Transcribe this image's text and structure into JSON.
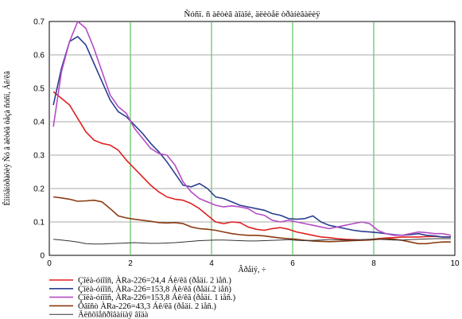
{
  "chart_data": {
    "type": "line",
    "title": "Ñóñï. ñ àêòèâ àîàîé, äëèòåë òðàíèâàëèÿ",
    "xlabel": "Âðåìÿ, ÷",
    "ylabel": "Êîíöåíòðàöèÿ Ñó â àêòèâ òåçà ñóñï, Áê/êã",
    "xlim": [
      0,
      10
    ],
    "ylim": [
      0,
      0.7
    ],
    "x_ticks": [
      0,
      2,
      4,
      6,
      8,
      10
    ],
    "y_ticks": [
      0,
      0.1,
      0.2,
      0.3,
      0.4,
      0.5,
      0.6,
      0.7
    ],
    "x_tick_labels": [
      "0",
      "2",
      "4",
      "6",
      "8",
      "10"
    ],
    "y_tick_labels": [
      "0",
      "0.1",
      "0.2",
      "0.3",
      "0.4",
      "0.5",
      "0.6",
      "0.7"
    ],
    "grid": true,
    "legend_position": "bottom",
    "series": [
      {
        "name": "Çîëà-óíîîñ, ÀRa-226=24,4 Áê/êã (ðåäí. 2 ìåñ.)",
        "color": "#e02020",
        "x": [
          0.1,
          0.3,
          0.5,
          0.7,
          0.9,
          1.1,
          1.3,
          1.5,
          1.7,
          1.9,
          2.1,
          2.3,
          2.5,
          2.7,
          2.9,
          3.1,
          3.3,
          3.5,
          3.7,
          3.9,
          4.1,
          4.3,
          4.5,
          4.7,
          4.9,
          5.1,
          5.3,
          5.5,
          5.7,
          5.9,
          6.1,
          6.3,
          6.5,
          6.7,
          6.9,
          7.1,
          7.3,
          7.5,
          7.7,
          7.9,
          8.1,
          8.3,
          8.5,
          8.7,
          8.9,
          9.1,
          9.3,
          9.5,
          9.7,
          9.9
        ],
        "y": [
          0.49,
          0.47,
          0.45,
          0.41,
          0.37,
          0.345,
          0.335,
          0.33,
          0.315,
          0.285,
          0.26,
          0.235,
          0.21,
          0.19,
          0.175,
          0.168,
          0.165,
          0.155,
          0.14,
          0.12,
          0.1,
          0.095,
          0.1,
          0.098,
          0.085,
          0.078,
          0.075,
          0.08,
          0.083,
          0.078,
          0.07,
          0.065,
          0.06,
          0.055,
          0.053,
          0.05,
          0.048,
          0.047,
          0.046,
          0.047,
          0.05,
          0.052,
          0.053,
          0.055,
          0.055,
          0.055,
          0.056,
          0.057,
          0.055,
          0.055
        ]
      },
      {
        "name": "Çîëà-óíîîñ, ÀRa-226=153,8 Áê/êã (ðåäí.2 ìåñ)",
        "color": "#2a3f8f",
        "x": [
          0.1,
          0.3,
          0.5,
          0.7,
          0.9,
          1.1,
          1.3,
          1.5,
          1.7,
          1.9,
          2.1,
          2.3,
          2.5,
          2.7,
          2.9,
          3.1,
          3.3,
          3.5,
          3.7,
          3.9,
          4.1,
          4.3,
          4.5,
          4.7,
          4.9,
          5.1,
          5.3,
          5.5,
          5.7,
          5.9,
          6.1,
          6.3,
          6.5,
          6.7,
          6.9,
          7.1,
          7.3,
          7.5,
          7.7,
          7.9,
          8.1,
          8.3,
          8.5,
          8.7,
          8.9,
          9.1,
          9.3,
          9.5,
          9.7,
          9.9
        ],
        "y": [
          0.45,
          0.56,
          0.64,
          0.655,
          0.63,
          0.575,
          0.52,
          0.465,
          0.43,
          0.415,
          0.39,
          0.365,
          0.335,
          0.31,
          0.28,
          0.245,
          0.21,
          0.205,
          0.215,
          0.2,
          0.175,
          0.17,
          0.16,
          0.15,
          0.145,
          0.14,
          0.135,
          0.125,
          0.12,
          0.11,
          0.108,
          0.11,
          0.118,
          0.1,
          0.09,
          0.085,
          0.08,
          0.075,
          0.072,
          0.07,
          0.068,
          0.065,
          0.062,
          0.06,
          0.062,
          0.065,
          0.06,
          0.058,
          0.055,
          0.055
        ]
      },
      {
        "name": "Çîëà-óíîîñ, ÀRa-226=153,8 Áê/êã (ðåäí. 1 ìåñ.)",
        "color": "#b44cc4",
        "x": [
          0.1,
          0.3,
          0.5,
          0.7,
          0.9,
          1.1,
          1.3,
          1.5,
          1.7,
          1.9,
          2.1,
          2.3,
          2.5,
          2.7,
          2.9,
          3.1,
          3.3,
          3.5,
          3.7,
          3.9,
          4.1,
          4.3,
          4.5,
          4.7,
          4.9,
          5.1,
          5.3,
          5.5,
          5.7,
          5.9,
          6.1,
          6.3,
          6.5,
          6.7,
          6.9,
          7.1,
          7.3,
          7.5,
          7.7,
          7.9,
          8.1,
          8.3,
          8.5,
          8.7,
          8.9,
          9.1,
          9.3,
          9.5,
          9.7,
          9.9
        ],
        "y": [
          0.385,
          0.55,
          0.64,
          0.7,
          0.68,
          0.62,
          0.55,
          0.48,
          0.445,
          0.425,
          0.38,
          0.35,
          0.32,
          0.305,
          0.3,
          0.27,
          0.22,
          0.19,
          0.17,
          0.16,
          0.15,
          0.145,
          0.148,
          0.145,
          0.14,
          0.125,
          0.12,
          0.105,
          0.1,
          0.105,
          0.1,
          0.095,
          0.09,
          0.085,
          0.08,
          0.085,
          0.09,
          0.095,
          0.1,
          0.095,
          0.075,
          0.065,
          0.06,
          0.06,
          0.065,
          0.07,
          0.068,
          0.065,
          0.065,
          0.06
        ]
      },
      {
        "name": "Õâîñò ÀRa-226=43,3 Áê/êã (ðåäí. 2 ìåñ.)",
        "color": "#8b3a12",
        "x": [
          0.1,
          0.3,
          0.5,
          0.7,
          0.9,
          1.1,
          1.3,
          1.5,
          1.7,
          1.9,
          2.1,
          2.3,
          2.5,
          2.7,
          2.9,
          3.1,
          3.3,
          3.5,
          3.7,
          3.9,
          4.1,
          4.3,
          4.5,
          4.7,
          4.9,
          5.1,
          5.3,
          5.5,
          5.7,
          5.9,
          6.1,
          6.3,
          6.5,
          6.7,
          6.9,
          7.1,
          7.3,
          7.5,
          7.7,
          7.9,
          8.1,
          8.3,
          8.5,
          8.7,
          8.9,
          9.1,
          9.3,
          9.5,
          9.7,
          9.9
        ],
        "y": [
          0.175,
          0.172,
          0.168,
          0.162,
          0.163,
          0.165,
          0.16,
          0.14,
          0.118,
          0.112,
          0.108,
          0.105,
          0.102,
          0.098,
          0.097,
          0.098,
          0.095,
          0.085,
          0.08,
          0.078,
          0.075,
          0.07,
          0.065,
          0.062,
          0.06,
          0.06,
          0.058,
          0.055,
          0.052,
          0.05,
          0.048,
          0.045,
          0.043,
          0.042,
          0.041,
          0.042,
          0.043,
          0.044,
          0.045,
          0.046,
          0.048,
          0.05,
          0.048,
          0.045,
          0.04,
          0.035,
          0.035,
          0.038,
          0.04,
          0.04
        ]
      },
      {
        "name": "Äëñõîåñðîâàííàÿ âîäà",
        "color": "#333333",
        "x": [
          0.1,
          0.3,
          0.5,
          0.7,
          0.9,
          1.1,
          1.3,
          1.5,
          1.7,
          1.9,
          2.1,
          2.3,
          2.5,
          2.7,
          2.9,
          3.1,
          3.3,
          3.5,
          3.7,
          3.9,
          4.1,
          4.3,
          4.5,
          4.7,
          4.9,
          5.1,
          5.3,
          5.5,
          5.7,
          5.9,
          6.1,
          6.3,
          6.5,
          6.7,
          6.9,
          7.1,
          7.3,
          7.5,
          7.7,
          7.9,
          8.1,
          8.3,
          8.5,
          8.7,
          8.9,
          9.1,
          9.3,
          9.5,
          9.7,
          9.9
        ],
        "y": [
          0.048,
          0.046,
          0.043,
          0.04,
          0.035,
          0.034,
          0.034,
          0.035,
          0.036,
          0.037,
          0.038,
          0.037,
          0.036,
          0.036,
          0.037,
          0.038,
          0.04,
          0.042,
          0.044,
          0.045,
          0.046,
          0.046,
          0.045,
          0.044,
          0.043,
          0.043,
          0.044,
          0.045,
          0.046,
          0.047,
          0.045,
          0.044,
          0.045,
          0.046,
          0.047,
          0.047,
          0.046,
          0.046,
          0.047,
          0.048,
          0.048,
          0.047,
          0.046,
          0.046,
          0.047,
          0.048,
          0.049,
          0.05,
          0.05,
          0.05
        ]
      }
    ]
  }
}
